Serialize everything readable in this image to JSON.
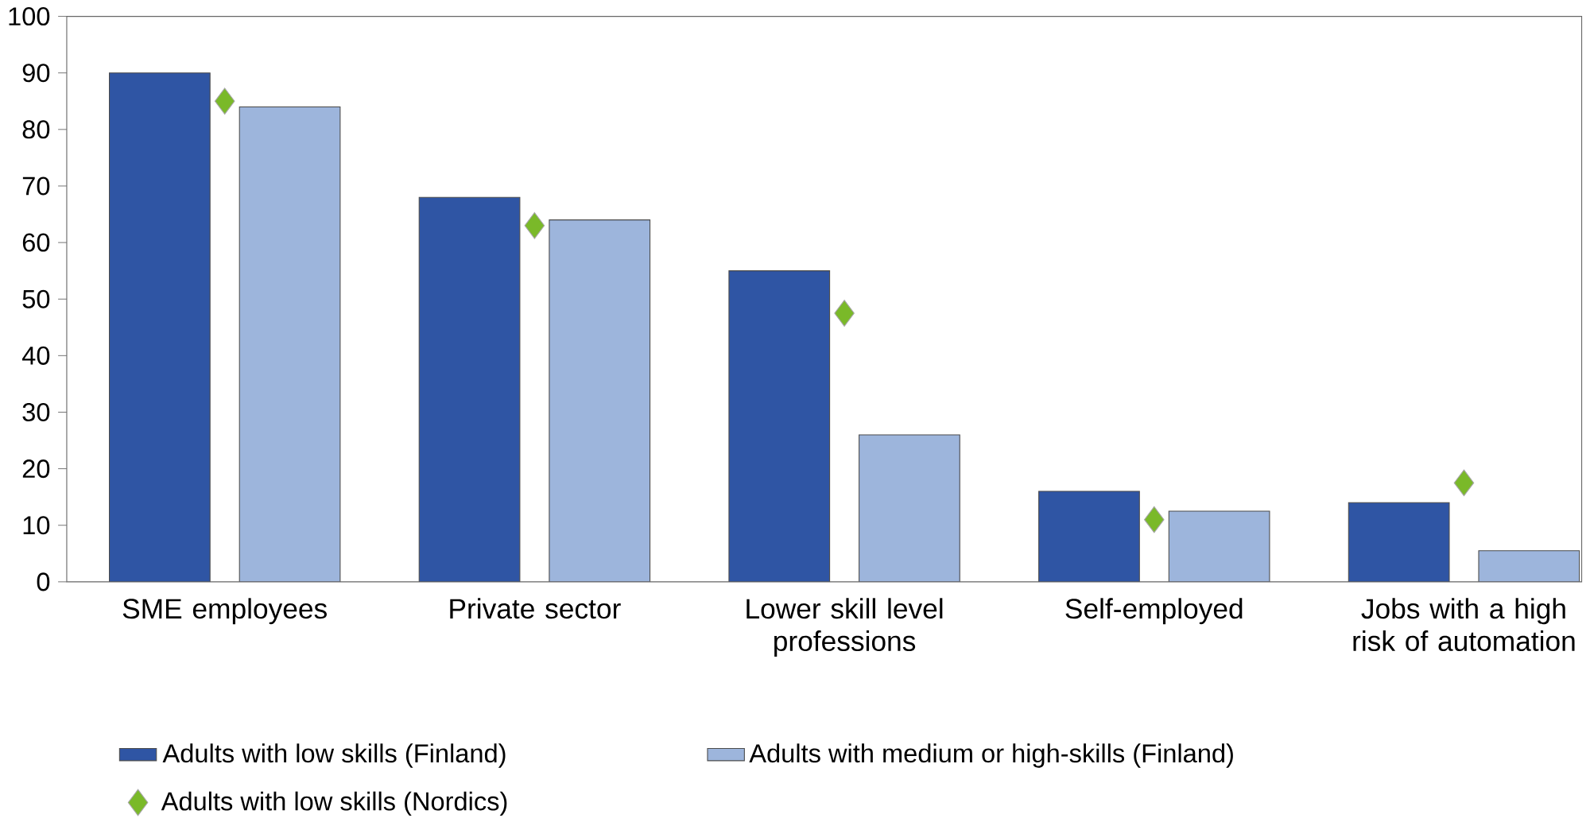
{
  "chart_data": {
    "type": "bar",
    "categories": [
      "SME employees",
      "Private sector",
      "Lower skill level professions",
      "Self-employed",
      "Jobs with a high risk of automation"
    ],
    "series": [
      {
        "name": "Adults with low skills (Finland)",
        "color": "#2f55a4",
        "values": [
          90,
          68,
          55,
          16,
          14
        ]
      },
      {
        "name": "Adults with medium or high-skills (Finland)",
        "color": "#9db5dc",
        "values": [
          84,
          64,
          26,
          12.5,
          5.5
        ]
      },
      {
        "name": "Adults with low skills (Nordics)",
        "type": "scatter",
        "marker": "diamond",
        "color": "#7ab929",
        "values": [
          85,
          63,
          47.5,
          11,
          17.5
        ]
      }
    ],
    "ylim": [
      0,
      100
    ],
    "yticks": [
      0,
      10,
      20,
      30,
      40,
      50,
      60,
      70,
      80,
      90,
      100
    ],
    "grid": false,
    "legend": "bottom"
  }
}
